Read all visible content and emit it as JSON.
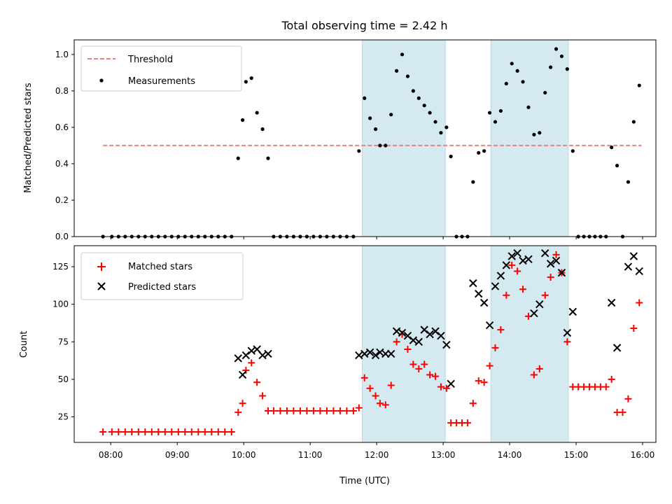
{
  "figure": {
    "title": "Total observing time = 2.42 h"
  },
  "chart_data": [
    {
      "type": "scatter",
      "ylabel": "Matched/Predicted stars",
      "ylim": [
        0,
        1.08
      ],
      "yticks": [
        "0.0",
        "0.2",
        "0.4",
        "0.6",
        "0.8",
        "1.0"
      ],
      "grid": false,
      "legend": "top-left",
      "shaded_intervals": [
        [
          "11:47",
          "13:02"
        ],
        [
          "13:43",
          "14:53"
        ]
      ],
      "shade_color": "#d4eaf0",
      "threshold": {
        "name": "Threshold",
        "value": 0.5,
        "x_range": [
          "07:53",
          "15:59"
        ],
        "color": "#f08080"
      },
      "series": [
        {
          "name": "Measurements",
          "color": "#000000",
          "points": [
            [
              "07:53",
              0
            ],
            [
              "08:01",
              0
            ],
            [
              "08:07",
              0
            ],
            [
              "08:13",
              0
            ],
            [
              "08:19",
              0
            ],
            [
              "08:25",
              0
            ],
            [
              "08:31",
              0
            ],
            [
              "08:37",
              0
            ],
            [
              "08:43",
              0
            ],
            [
              "08:49",
              0
            ],
            [
              "08:55",
              0
            ],
            [
              "09:01",
              0
            ],
            [
              "09:07",
              0
            ],
            [
              "09:13",
              0
            ],
            [
              "09:19",
              0
            ],
            [
              "09:25",
              0
            ],
            [
              "09:31",
              0
            ],
            [
              "09:37",
              0
            ],
            [
              "09:43",
              0
            ],
            [
              "09:49",
              0
            ],
            [
              "09:55",
              0.43
            ],
            [
              "09:59",
              0.64
            ],
            [
              "10:02",
              0.85
            ],
            [
              "10:07",
              0.87
            ],
            [
              "10:12",
              0.68
            ],
            [
              "10:17",
              0.59
            ],
            [
              "10:22",
              0.43
            ],
            [
              "10:27",
              0
            ],
            [
              "10:33",
              0
            ],
            [
              "10:39",
              0
            ],
            [
              "10:45",
              0
            ],
            [
              "10:51",
              0
            ],
            [
              "10:57",
              0
            ],
            [
              "11:03",
              0
            ],
            [
              "11:09",
              0
            ],
            [
              "11:15",
              0
            ],
            [
              "11:21",
              0
            ],
            [
              "11:27",
              0
            ],
            [
              "11:33",
              0
            ],
            [
              "11:39",
              0
            ],
            [
              "11:44",
              0.47
            ],
            [
              "11:49",
              0.76
            ],
            [
              "11:54",
              0.65
            ],
            [
              "11:59",
              0.59
            ],
            [
              "12:03",
              0.5
            ],
            [
              "12:08",
              0.5
            ],
            [
              "12:13",
              0.67
            ],
            [
              "12:18",
              0.91
            ],
            [
              "12:23",
              1.0
            ],
            [
              "12:28",
              0.88
            ],
            [
              "12:33",
              0.8
            ],
            [
              "12:38",
              0.76
            ],
            [
              "12:43",
              0.72
            ],
            [
              "12:48",
              0.68
            ],
            [
              "12:53",
              0.63
            ],
            [
              "12:58",
              0.57
            ],
            [
              "13:03",
              0.6
            ],
            [
              "13:07",
              0.44
            ],
            [
              "13:12",
              0
            ],
            [
              "13:17",
              0
            ],
            [
              "13:22",
              0
            ],
            [
              "13:27",
              0.3
            ],
            [
              "13:32",
              0.46
            ],
            [
              "13:37",
              0.47
            ],
            [
              "13:42",
              0.68
            ],
            [
              "13:47",
              0.63
            ],
            [
              "13:52",
              0.69
            ],
            [
              "13:57",
              0.84
            ],
            [
              "14:02",
              0.95
            ],
            [
              "14:07",
              0.91
            ],
            [
              "14:12",
              0.85
            ],
            [
              "14:17",
              0.71
            ],
            [
              "14:22",
              0.56
            ],
            [
              "14:27",
              0.57
            ],
            [
              "14:32",
              0.79
            ],
            [
              "14:37",
              0.93
            ],
            [
              "14:42",
              1.03
            ],
            [
              "14:47",
              0.99
            ],
            [
              "14:52",
              0.92
            ],
            [
              "14:57",
              0.47
            ],
            [
              "15:02",
              0
            ],
            [
              "15:07",
              0
            ],
            [
              "15:12",
              0
            ],
            [
              "15:17",
              0
            ],
            [
              "15:22",
              0
            ],
            [
              "15:27",
              0
            ],
            [
              "15:32",
              0.49
            ],
            [
              "15:37",
              0.39
            ],
            [
              "15:42",
              0
            ],
            [
              "15:47",
              0.3
            ],
            [
              "15:52",
              0.63
            ],
            [
              "15:57",
              0.83
            ]
          ]
        }
      ]
    },
    {
      "type": "scatter",
      "xlabel": "Time (UTC)",
      "ylabel": "Count",
      "xlim": [
        "07:27",
        "16:12"
      ],
      "xticks": [
        "08:00",
        "09:00",
        "10:00",
        "11:00",
        "12:00",
        "13:00",
        "14:00",
        "15:00",
        "16:00"
      ],
      "ylim": [
        8,
        139
      ],
      "yticks": [
        "25",
        "50",
        "75",
        "100",
        "125"
      ],
      "grid": false,
      "legend": "top-left",
      "shaded_intervals": [
        [
          "11:47",
          "13:02"
        ],
        [
          "13:43",
          "14:53"
        ]
      ],
      "series": [
        {
          "name": "Matched stars",
          "color": "#ff0000",
          "marker": "+",
          "points": [
            [
              "07:53",
              15
            ],
            [
              "08:01",
              15
            ],
            [
              "08:07",
              15
            ],
            [
              "08:13",
              15
            ],
            [
              "08:19",
              15
            ],
            [
              "08:25",
              15
            ],
            [
              "08:31",
              15
            ],
            [
              "08:37",
              15
            ],
            [
              "08:43",
              15
            ],
            [
              "08:49",
              15
            ],
            [
              "08:55",
              15
            ],
            [
              "09:01",
              15
            ],
            [
              "09:07",
              15
            ],
            [
              "09:13",
              15
            ],
            [
              "09:19",
              15
            ],
            [
              "09:25",
              15
            ],
            [
              "09:31",
              15
            ],
            [
              "09:37",
              15
            ],
            [
              "09:43",
              15
            ],
            [
              "09:49",
              15
            ],
            [
              "09:55",
              28
            ],
            [
              "09:59",
              34
            ],
            [
              "10:02",
              56
            ],
            [
              "10:07",
              61
            ],
            [
              "10:12",
              48
            ],
            [
              "10:17",
              39
            ],
            [
              "10:22",
              29
            ],
            [
              "10:27",
              29
            ],
            [
              "10:33",
              29
            ],
            [
              "10:39",
              29
            ],
            [
              "10:45",
              29
            ],
            [
              "10:51",
              29
            ],
            [
              "10:57",
              29
            ],
            [
              "11:03",
              29
            ],
            [
              "11:09",
              29
            ],
            [
              "11:15",
              29
            ],
            [
              "11:21",
              29
            ],
            [
              "11:27",
              29
            ],
            [
              "11:33",
              29
            ],
            [
              "11:39",
              29
            ],
            [
              "11:44",
              31
            ],
            [
              "11:49",
              51
            ],
            [
              "11:54",
              44
            ],
            [
              "11:59",
              39
            ],
            [
              "12:03",
              34
            ],
            [
              "12:08",
              33
            ],
            [
              "12:13",
              46
            ],
            [
              "12:18",
              75
            ],
            [
              "12:23",
              80
            ],
            [
              "12:28",
              70
            ],
            [
              "12:33",
              60
            ],
            [
              "12:38",
              57
            ],
            [
              "12:43",
              60
            ],
            [
              "12:48",
              53
            ],
            [
              "12:53",
              52
            ],
            [
              "12:58",
              45
            ],
            [
              "13:03",
              44
            ],
            [
              "13:07",
              21
            ],
            [
              "13:12",
              21
            ],
            [
              "13:17",
              21
            ],
            [
              "13:22",
              21
            ],
            [
              "13:27",
              34
            ],
            [
              "13:32",
              49
            ],
            [
              "13:37",
              48
            ],
            [
              "13:42",
              59
            ],
            [
              "13:47",
              71
            ],
            [
              "13:52",
              83
            ],
            [
              "13:57",
              106
            ],
            [
              "14:02",
              126
            ],
            [
              "14:07",
              122
            ],
            [
              "14:12",
              110
            ],
            [
              "14:17",
              92
            ],
            [
              "14:22",
              53
            ],
            [
              "14:27",
              57
            ],
            [
              "14:32",
              106
            ],
            [
              "14:37",
              118
            ],
            [
              "14:42",
              133
            ],
            [
              "14:47",
              121
            ],
            [
              "14:52",
              75
            ],
            [
              "14:57",
              45
            ],
            [
              "15:02",
              45
            ],
            [
              "15:07",
              45
            ],
            [
              "15:12",
              45
            ],
            [
              "15:17",
              45
            ],
            [
              "15:22",
              45
            ],
            [
              "15:27",
              45
            ],
            [
              "15:32",
              50
            ],
            [
              "15:37",
              28
            ],
            [
              "15:42",
              28
            ],
            [
              "15:47",
              37
            ],
            [
              "15:52",
              84
            ],
            [
              "15:57",
              101
            ]
          ]
        },
        {
          "name": "Predicted stars",
          "color": "#000000",
          "marker": "x",
          "points": [
            [
              "09:55",
              64
            ],
            [
              "09:59",
              53
            ],
            [
              "10:02",
              66
            ],
            [
              "10:07",
              69
            ],
            [
              "10:12",
              70
            ],
            [
              "10:17",
              66
            ],
            [
              "10:22",
              67
            ],
            [
              "11:44",
              66
            ],
            [
              "11:49",
              67
            ],
            [
              "11:54",
              68
            ],
            [
              "11:59",
              66
            ],
            [
              "12:03",
              68
            ],
            [
              "12:08",
              67
            ],
            [
              "12:13",
              67
            ],
            [
              "12:18",
              82
            ],
            [
              "12:23",
              81
            ],
            [
              "12:28",
              79
            ],
            [
              "12:33",
              76
            ],
            [
              "12:38",
              75
            ],
            [
              "12:43",
              83
            ],
            [
              "12:48",
              80
            ],
            [
              "12:53",
              82
            ],
            [
              "12:58",
              79
            ],
            [
              "13:03",
              73
            ],
            [
              "13:07",
              47
            ],
            [
              "13:27",
              114
            ],
            [
              "13:32",
              107
            ],
            [
              "13:37",
              101
            ],
            [
              "13:42",
              86
            ],
            [
              "13:47",
              112
            ],
            [
              "13:52",
              119
            ],
            [
              "13:57",
              126
            ],
            [
              "14:02",
              132
            ],
            [
              "14:07",
              134
            ],
            [
              "14:12",
              129
            ],
            [
              "14:17",
              130
            ],
            [
              "14:22",
              94
            ],
            [
              "14:27",
              100
            ],
            [
              "14:32",
              134
            ],
            [
              "14:37",
              127
            ],
            [
              "14:42",
              129
            ],
            [
              "14:47",
              121
            ],
            [
              "14:52",
              81
            ],
            [
              "14:57",
              95
            ],
            [
              "15:32",
              101
            ],
            [
              "15:37",
              71
            ],
            [
              "15:47",
              125
            ],
            [
              "15:52",
              132
            ],
            [
              "15:57",
              122
            ]
          ]
        }
      ]
    }
  ]
}
